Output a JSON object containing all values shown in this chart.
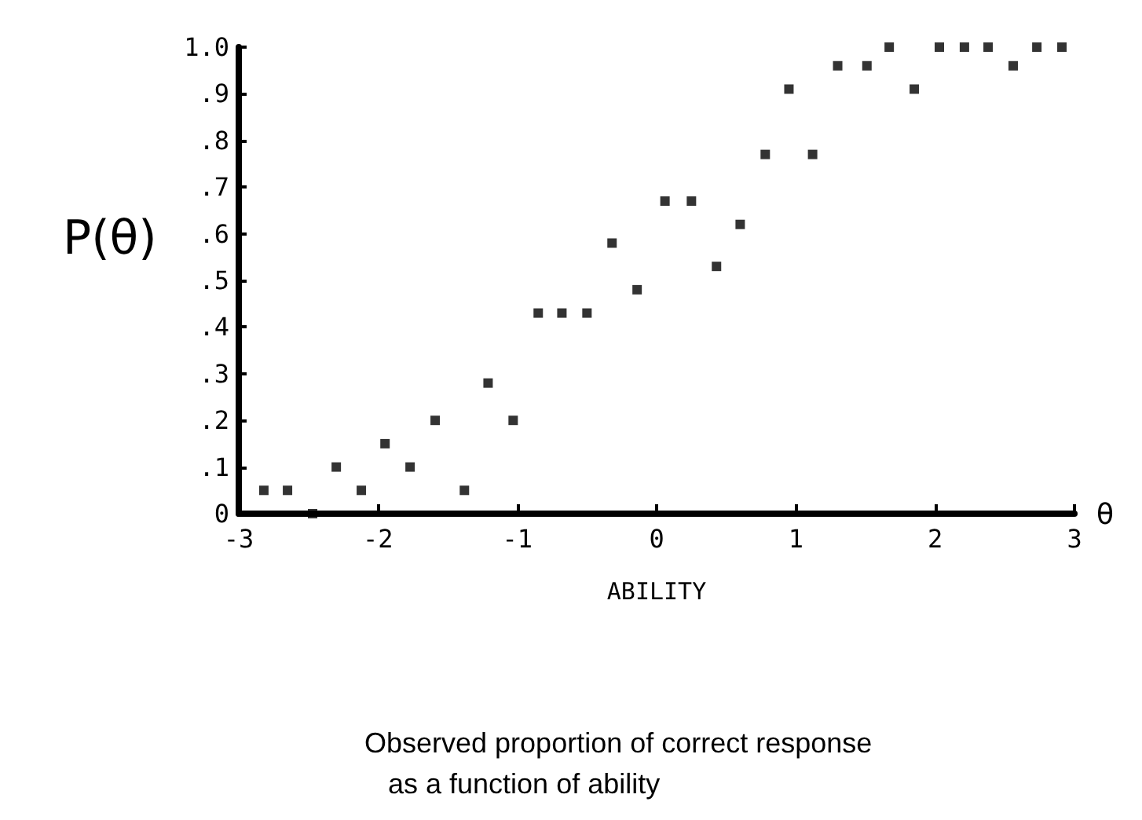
{
  "chart_data": {
    "type": "scatter",
    "ylabel": "P(θ)",
    "xlabel": "ABILITY",
    "annotations": [
      "θ",
      "Observed proportion of correct response\n   as a function of ability"
    ],
    "x": [
      -2.82,
      -2.65,
      -2.47,
      -2.3,
      -2.12,
      -1.95,
      -1.77,
      -1.59,
      -1.38,
      -1.21,
      -1.03,
      -0.85,
      -0.68,
      -0.5,
      -0.32,
      -0.14,
      0.06,
      0.25,
      0.43,
      0.6,
      0.78,
      0.95,
      1.12,
      1.3,
      1.51,
      1.67,
      1.85,
      2.03,
      2.21,
      2.38,
      2.56,
      2.73,
      2.91
    ],
    "values": [
      0.05,
      0.05,
      0.0,
      0.1,
      0.05,
      0.15,
      0.1,
      0.2,
      0.05,
      0.28,
      0.2,
      0.43,
      0.43,
      0.43,
      0.58,
      0.48,
      0.67,
      0.67,
      0.53,
      0.62,
      0.77,
      0.91,
      0.77,
      0.96,
      0.96,
      1.0,
      0.91,
      1.0,
      1.0,
      1.0,
      0.96,
      1.0,
      1.0
    ],
    "color": "#000000",
    "marker": "square",
    "grid": false,
    "xlim": [
      -3,
      3
    ],
    "xticks": [
      -3,
      -2,
      -1,
      0,
      1,
      2,
      3
    ],
    "ylim": [
      0,
      1
    ],
    "yticks": [
      0,
      {
        "value": 0.1,
        "label": ".1"
      },
      {
        "value": 0.2,
        "label": ".2"
      },
      {
        "value": 0.3,
        "label": ".3"
      },
      {
        "value": 0.4,
        "label": ".4"
      },
      {
        "value": 0.5,
        "label": ".5"
      },
      {
        "value": 0.6,
        "label": ".6"
      },
      {
        "value": 0.7,
        "label": ".7"
      },
      {
        "value": 0.8,
        "label": ".8"
      },
      {
        "value": 0.9,
        "label": ".9"
      },
      {
        "value": 1.0,
        "label": "1.0"
      }
    ]
  }
}
